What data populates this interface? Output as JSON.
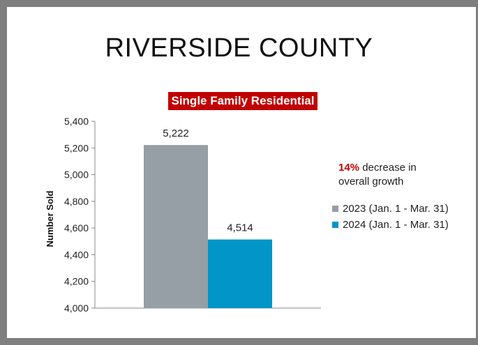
{
  "slide": {
    "title": "RIVERSIDE COUNTY",
    "subtitle": "Single Family Residential"
  },
  "annotation": {
    "percent": "14%",
    "line1_rest": " decrease in",
    "line2": "overall growth"
  },
  "colors": {
    "series_2023": "#969ea6",
    "series_2024": "#0195c8",
    "accent": "#c00000"
  },
  "chart_data": {
    "type": "bar",
    "title": "Single Family Residential",
    "xlabel": "",
    "ylabel": "Number Sold",
    "ylim": [
      4000,
      5400
    ],
    "yticks": [
      "4,000",
      "4,200",
      "4,400",
      "4,600",
      "4,800",
      "5,000",
      "5,200",
      "5,400"
    ],
    "ytick_values": [
      4000,
      4200,
      4400,
      4600,
      4800,
      5000,
      5200,
      5400
    ],
    "grid": false,
    "legend_position": "right",
    "series": [
      {
        "name": "2023 (Jan. 1 - Mar. 31)",
        "value": 5222,
        "label": "5,222",
        "color": "#969ea6"
      },
      {
        "name": "2024 (Jan. 1 - Mar. 31)",
        "value": 4514,
        "label": "4,514",
        "color": "#0195c8"
      }
    ]
  }
}
